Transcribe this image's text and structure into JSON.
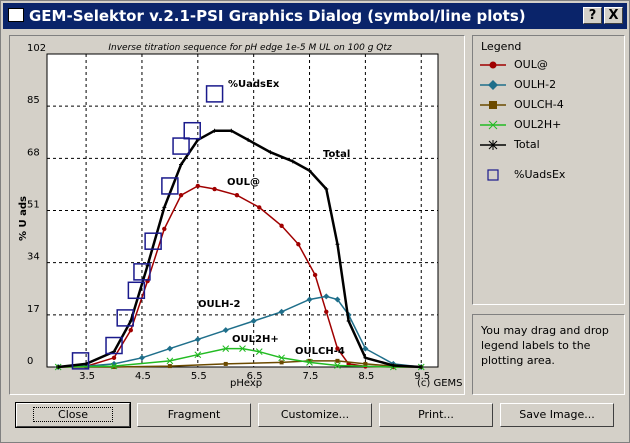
{
  "window": {
    "title": "GEM-Selektor v.2.1-PSI Graphics Dialog (symbol/line plots)",
    "help_label": "?",
    "close_label": "X"
  },
  "plot": {
    "subtitle": "Inverse titration sequence for pH edge 1e-5 M UL on 100 g Qtz",
    "copyright": "(c) GEMS"
  },
  "chart_data": {
    "type": "line",
    "xlabel": "pHexp",
    "ylabel": "% U ads",
    "xlim": [
      2.8,
      9.8
    ],
    "ylim": [
      0,
      102
    ],
    "x_ticks": [
      "3.5",
      "4.5",
      "5.5",
      "6.5",
      "7.5",
      "8.5",
      "9.5"
    ],
    "y_ticks": [
      "0",
      "17",
      "34",
      "51",
      "68",
      "85",
      "102"
    ],
    "grid": true,
    "series": [
      {
        "name": "OUL@",
        "color": "#a00000",
        "marker": "circle",
        "x": [
          3.0,
          3.5,
          4.0,
          4.3,
          4.6,
          4.9,
          5.2,
          5.5,
          5.8,
          6.2,
          6.6,
          7.0,
          7.3,
          7.6,
          7.8,
          8.0,
          8.2,
          8.5,
          9.0,
          9.5
        ],
        "y": [
          0,
          0.2,
          3,
          12,
          28,
          45,
          56,
          59,
          58,
          56,
          52,
          46,
          40,
          30,
          18,
          6,
          1,
          0.2,
          0,
          0
        ]
      },
      {
        "name": "OULH-2",
        "color": "#1f6f8b",
        "marker": "diamond",
        "x": [
          3.0,
          3.5,
          4.0,
          4.5,
          5.0,
          5.5,
          6.0,
          6.5,
          7.0,
          7.5,
          7.8,
          8.0,
          8.2,
          8.5,
          9.0,
          9.5
        ],
        "y": [
          0,
          0.3,
          1,
          3,
          6,
          9,
          12,
          15,
          18,
          22,
          23,
          22,
          17,
          6,
          1,
          0
        ]
      },
      {
        "name": "OULCH-4",
        "color": "#6b4a00",
        "marker": "square",
        "x": [
          3.0,
          4.0,
          5.0,
          6.0,
          7.0,
          7.5,
          8.0,
          8.5,
          9.0,
          9.5
        ],
        "y": [
          0,
          0,
          0.3,
          1,
          1.5,
          2,
          2,
          1,
          0.3,
          0
        ]
      },
      {
        "name": "OUL2H+",
        "color": "#22bb22",
        "marker": "cross",
        "x": [
          3.0,
          4.0,
          5.0,
          5.5,
          6.0,
          6.3,
          6.6,
          7.0,
          7.5,
          8.0,
          9.0,
          9.5
        ],
        "y": [
          0,
          0.3,
          2,
          4,
          6,
          6,
          5,
          3,
          1.5,
          0.5,
          0,
          0
        ]
      },
      {
        "name": "Total",
        "color": "#000000",
        "marker": "star",
        "x": [
          3.0,
          3.5,
          4.0,
          4.3,
          4.6,
          4.9,
          5.2,
          5.5,
          5.8,
          6.1,
          6.4,
          6.8,
          7.2,
          7.5,
          7.8,
          8.0,
          8.2,
          8.5,
          9.0,
          9.5
        ],
        "y": [
          0,
          1,
          5,
          15,
          33,
          52,
          66,
          74,
          77,
          77,
          74,
          70,
          67,
          64,
          58,
          40,
          15,
          3,
          0.5,
          0
        ]
      },
      {
        "name": "%UadsEx",
        "color": "#1a1a8c",
        "marker": "open-square",
        "x": [
          3.4,
          4.0,
          4.2,
          4.4,
          4.5,
          4.7,
          5.0,
          5.2,
          5.4,
          5.8
        ],
        "y": [
          2,
          7,
          16,
          25,
          31,
          41,
          59,
          72,
          77,
          89
        ]
      }
    ],
    "annotations": [
      "%UadsEx",
      "Total",
      "OUL@",
      "OULH-2",
      "OUL2H+",
      "OULCH-4"
    ]
  },
  "legend": {
    "title": "Legend",
    "items": [
      {
        "label": "OUL@",
        "color": "#a00000"
      },
      {
        "label": "OULH-2",
        "color": "#1f6f8b"
      },
      {
        "label": "OULCH-4",
        "color": "#6b4a00"
      },
      {
        "label": "OUL2H+",
        "color": "#22bb22"
      },
      {
        "label": "Total",
        "color": "#000000"
      },
      {
        "label": "%UadsEx",
        "color": "#1a1a8c"
      }
    ]
  },
  "info": {
    "text": "You may drag and drop legend labels to the plotting area."
  },
  "buttons": {
    "close": "Close",
    "fragment": "Fragment",
    "customize": "Customize...",
    "print": "Print...",
    "save_image": "Save Image..."
  }
}
